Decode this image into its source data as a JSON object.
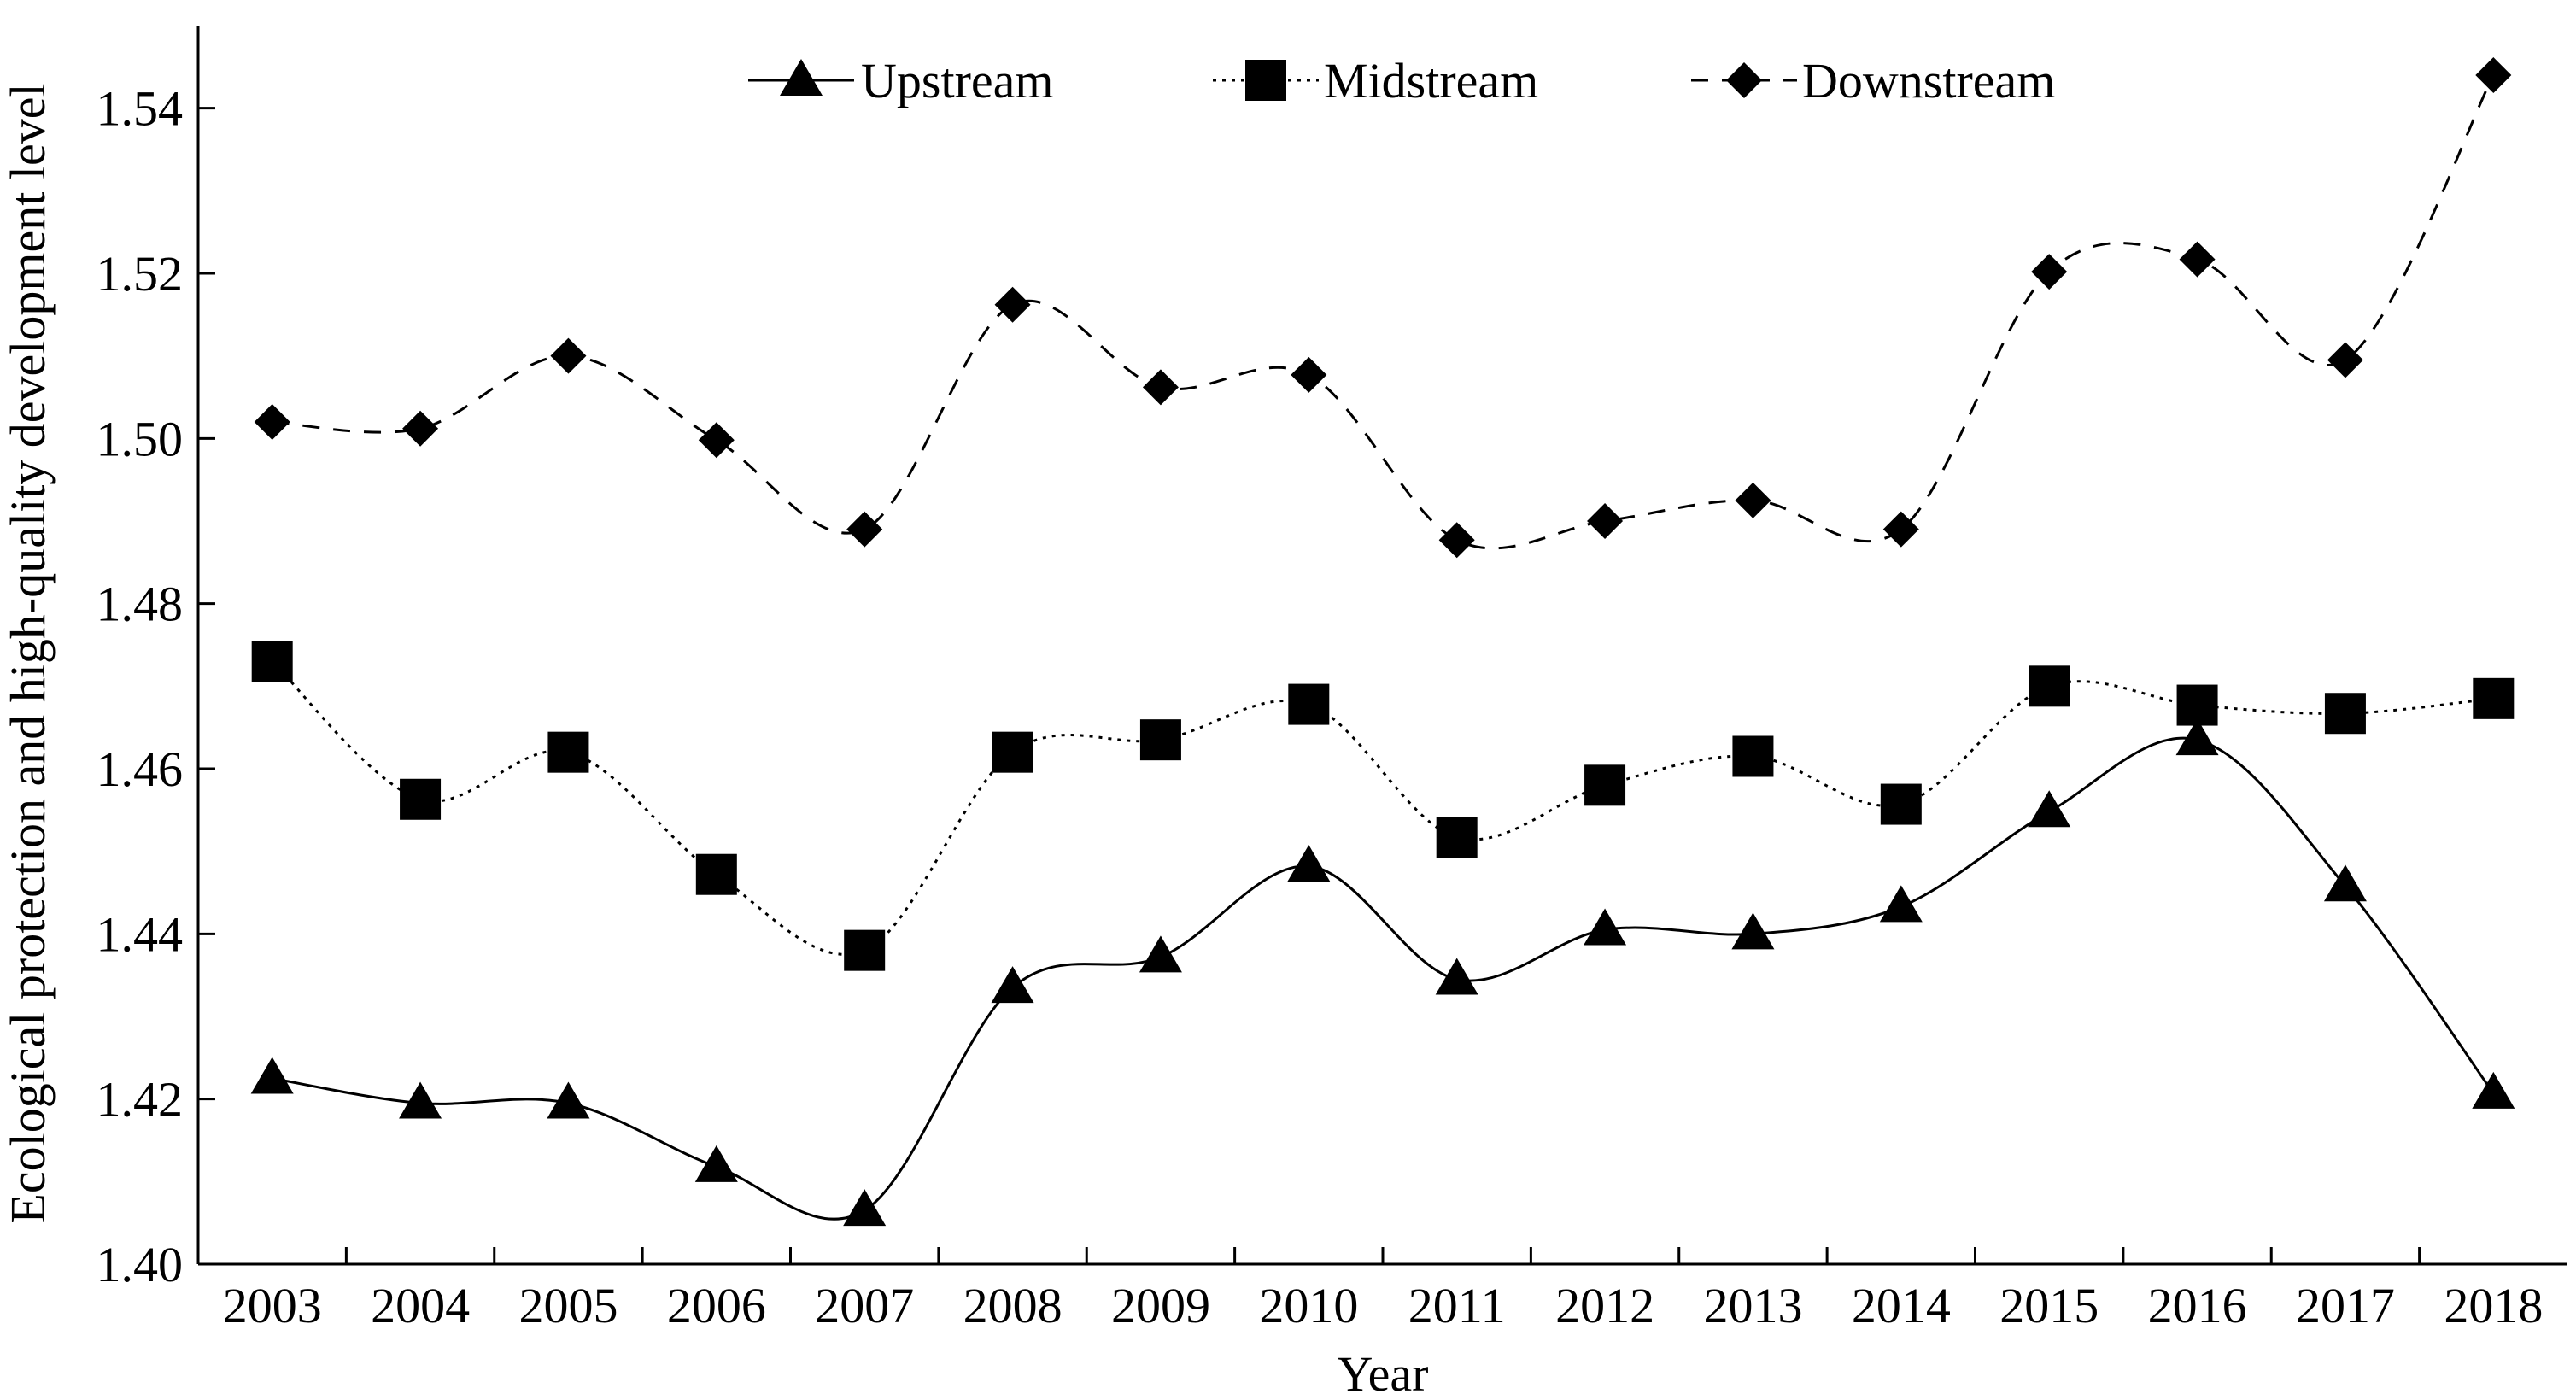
{
  "chart_data": {
    "type": "line",
    "xlabel": "Year",
    "ylabel": "Ecological protection and high-quality development level",
    "categories": [
      "2003",
      "2004",
      "2005",
      "2006",
      "2007",
      "2008",
      "2009",
      "2010",
      "2011",
      "2012",
      "2013",
      "2014",
      "2015",
      "2016",
      "2017",
      "2018"
    ],
    "ylim": [
      1.4,
      1.55
    ],
    "yticks": [
      "1.40",
      "1.42",
      "1.44",
      "1.46",
      "1.48",
      "1.50",
      "1.52",
      "1.54"
    ],
    "grid": false,
    "legend_position": "top",
    "series": [
      {
        "name": "Upstream",
        "marker": "triangle",
        "line_style": "solid",
        "values": [
          1.4225,
          1.4195,
          1.4195,
          1.4118,
          1.4065,
          1.4335,
          1.4372,
          1.4482,
          1.4345,
          1.4405,
          1.44,
          1.4433,
          1.4548,
          1.4635,
          1.4458,
          1.4207
        ]
      },
      {
        "name": "Midstream",
        "marker": "square",
        "line_style": "dotted",
        "values": [
          1.473,
          1.4563,
          1.462,
          1.4472,
          1.438,
          1.462,
          1.4635,
          1.4678,
          1.4517,
          1.458,
          1.4615,
          1.4557,
          1.47,
          1.4677,
          1.4667,
          1.4685
        ]
      },
      {
        "name": "Downstream",
        "marker": "diamond",
        "line_style": "dashed",
        "values": [
          1.502,
          1.5012,
          1.51,
          1.4998,
          1.489,
          1.5162,
          1.5062,
          1.5077,
          1.4877,
          1.49,
          1.4925,
          1.489,
          1.5202,
          1.5217,
          1.5095,
          1.544
        ]
      }
    ]
  },
  "colors": {
    "axis": "#000000",
    "series": "#000000",
    "background": "#ffffff"
  }
}
